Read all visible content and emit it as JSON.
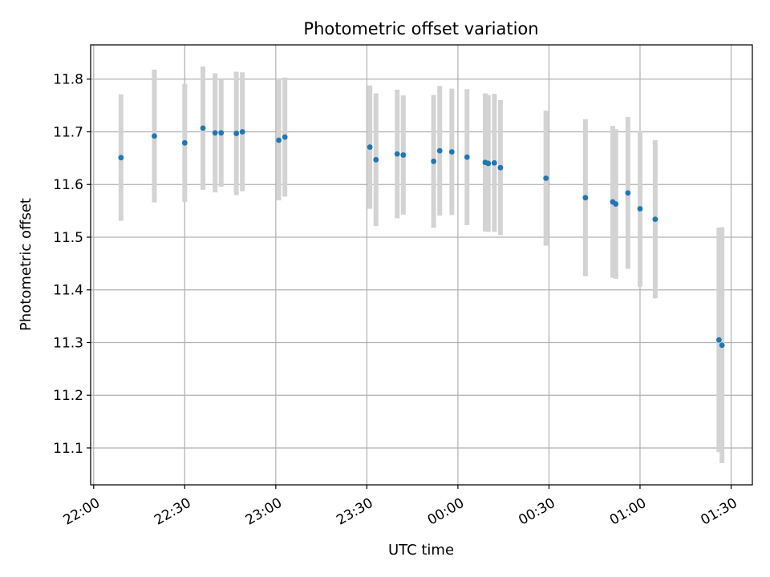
{
  "chart_data": {
    "type": "scatter",
    "title": "Photometric offset variation",
    "xlabel": "UTC time",
    "ylabel": "Photometric offset",
    "x_tick_labels": [
      "22:00",
      "22:30",
      "23:00",
      "23:30",
      "00:00",
      "00:30",
      "01:00",
      "01:30"
    ],
    "x_tick_times": [
      "2024-01-01T22:00",
      "2024-01-01T22:30",
      "2024-01-01T23:00",
      "2024-01-01T23:30",
      "2024-01-02T00:00",
      "2024-01-02T00:30",
      "2024-01-02T01:00",
      "2024-01-02T01:30"
    ],
    "xlim": [
      "2024-01-01T21:59",
      "2024-01-02T01:37"
    ],
    "ylim": [
      11.03,
      11.865
    ],
    "y_ticks": [
      11.1,
      11.2,
      11.3,
      11.4,
      11.5,
      11.6,
      11.7,
      11.8
    ],
    "grid": true,
    "colors": {
      "points": "#1f77b4",
      "errorbars": "#d3d3d3",
      "grid": "#b0b0b0"
    },
    "points": [
      {
        "x": "2024-01-01T22:09",
        "y": 11.651,
        "err": 0.12
      },
      {
        "x": "2024-01-01T22:20",
        "y": 11.692,
        "err": 0.126
      },
      {
        "x": "2024-01-01T22:30",
        "y": 11.679,
        "err": 0.112
      },
      {
        "x": "2024-01-01T22:36",
        "y": 11.707,
        "err": 0.117
      },
      {
        "x": "2024-01-01T22:40",
        "y": 11.698,
        "err": 0.113
      },
      {
        "x": "2024-01-01T22:42",
        "y": 11.698,
        "err": 0.102
      },
      {
        "x": "2024-01-01T22:47",
        "y": 11.697,
        "err": 0.117
      },
      {
        "x": "2024-01-01T22:49",
        "y": 11.7,
        "err": 0.113
      },
      {
        "x": "2024-01-01T23:01",
        "y": 11.684,
        "err": 0.114
      },
      {
        "x": "2024-01-01T23:03",
        "y": 11.69,
        "err": 0.113
      },
      {
        "x": "2024-01-01T23:31",
        "y": 11.671,
        "err": 0.117
      },
      {
        "x": "2024-01-01T23:33",
        "y": 11.647,
        "err": 0.126
      },
      {
        "x": "2024-01-01T23:40",
        "y": 11.658,
        "err": 0.122
      },
      {
        "x": "2024-01-01T23:42",
        "y": 11.656,
        "err": 0.113
      },
      {
        "x": "2024-01-01T23:52",
        "y": 11.644,
        "err": 0.126
      },
      {
        "x": "2024-01-01T23:54",
        "y": 11.664,
        "err": 0.123
      },
      {
        "x": "2024-01-01T23:58",
        "y": 11.662,
        "err": 0.12
      },
      {
        "x": "2024-01-02T00:03",
        "y": 11.652,
        "err": 0.129
      },
      {
        "x": "2024-01-02T00:09",
        "y": 11.642,
        "err": 0.131
      },
      {
        "x": "2024-01-02T00:10",
        "y": 11.64,
        "err": 0.13
      },
      {
        "x": "2024-01-02T00:12",
        "y": 11.641,
        "err": 0.131
      },
      {
        "x": "2024-01-02T00:14",
        "y": 11.632,
        "err": 0.128
      },
      {
        "x": "2024-01-02T00:29",
        "y": 11.612,
        "err": 0.128
      },
      {
        "x": "2024-01-02T00:42",
        "y": 11.575,
        "err": 0.149
      },
      {
        "x": "2024-01-02T00:51",
        "y": 11.567,
        "err": 0.144
      },
      {
        "x": "2024-01-02T00:52",
        "y": 11.563,
        "err": 0.142
      },
      {
        "x": "2024-01-02T00:56",
        "y": 11.584,
        "err": 0.144
      },
      {
        "x": "2024-01-02T01:00",
        "y": 11.554,
        "err": 0.148
      },
      {
        "x": "2024-01-02T01:05",
        "y": 11.534,
        "err": 0.15
      },
      {
        "x": "2024-01-02T01:26",
        "y": 11.305,
        "err": 0.213
      },
      {
        "x": "2024-01-02T01:27",
        "y": 11.295,
        "err": 0.224
      }
    ]
  }
}
